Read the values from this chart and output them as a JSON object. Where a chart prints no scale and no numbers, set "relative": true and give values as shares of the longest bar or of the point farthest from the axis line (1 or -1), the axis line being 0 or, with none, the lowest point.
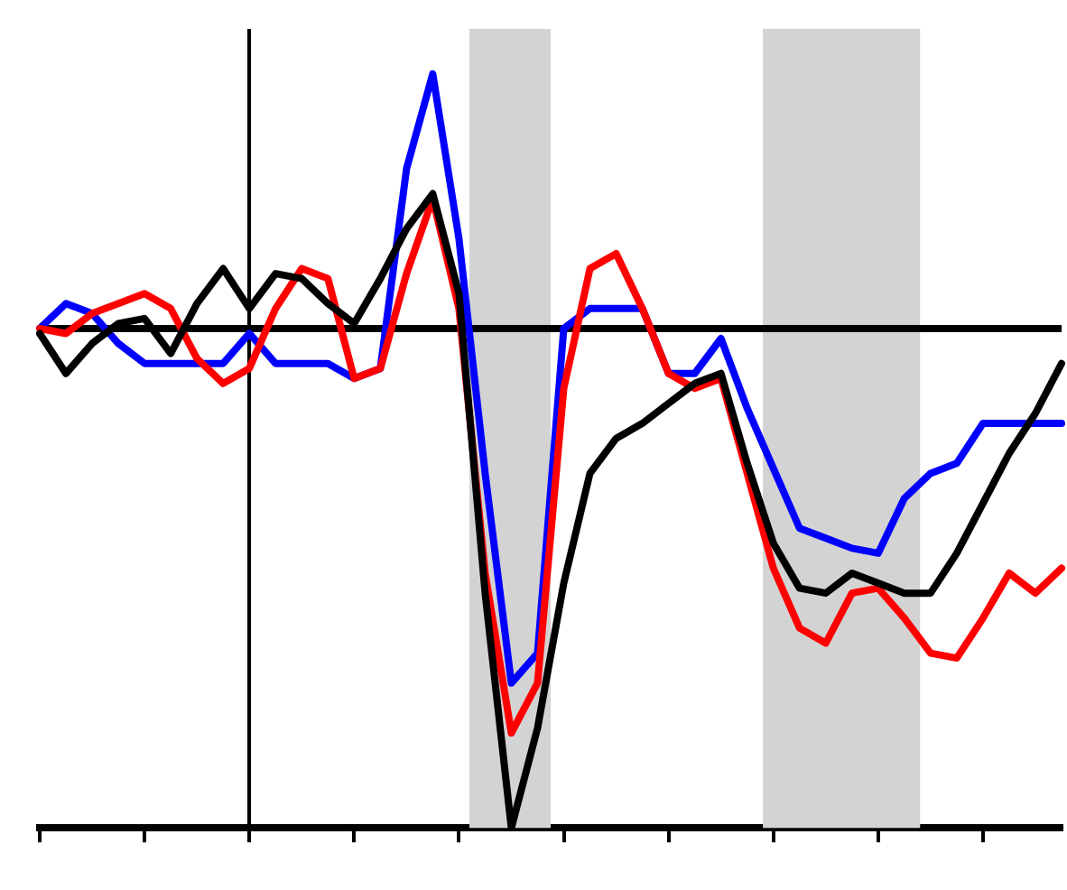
{
  "chart_data": {
    "type": "line",
    "relative": true,
    "grid": false,
    "legend": false,
    "marker": "none",
    "line_style": "solid",
    "categories": [
      null,
      null,
      null,
      null,
      null,
      null,
      null,
      null,
      null,
      null,
      null,
      null,
      null,
      null,
      null,
      null,
      null,
      null,
      null,
      null,
      null,
      null,
      null,
      null,
      null,
      null,
      null,
      null,
      null,
      null,
      null,
      null,
      null,
      null,
      null,
      null,
      null,
      null,
      null,
      null
    ],
    "series": [
      {
        "color": "#000000",
        "values": [
          -0.01,
          -0.09,
          -0.03,
          0.01,
          0.02,
          -0.05,
          0.05,
          0.12,
          0.04,
          0.11,
          0.1,
          0.05,
          0.01,
          0.1,
          0.2,
          0.27,
          0.07,
          -0.53,
          -1,
          -0.8,
          -0.51,
          -0.29,
          -0.22,
          -0.19,
          -0.15,
          -0.11,
          -0.09,
          -0.27,
          -0.43,
          -0.52,
          -0.53,
          -0.49,
          -0.51,
          -0.53,
          -0.53,
          -0.45,
          -0.35,
          -0.25,
          -0.17,
          -0.07
        ]
      },
      {
        "color": "#ff0000",
        "values": [
          0,
          -0.01,
          0.03,
          0.05,
          0.07,
          0.04,
          -0.06,
          -0.11,
          -0.08,
          0.04,
          0.12,
          0.1,
          -0.1,
          -0.08,
          0.11,
          0.26,
          0.04,
          -0.49,
          -0.81,
          -0.71,
          -0.12,
          0.12,
          0.15,
          0.04,
          -0.09,
          -0.12,
          -0.1,
          -0.29,
          -0.48,
          -0.6,
          -0.63,
          -0.53,
          -0.52,
          -0.58,
          -0.65,
          -0.66,
          -0.58,
          -0.49,
          -0.53,
          -0.48
        ]
      },
      {
        "color": "#0000ff",
        "values": [
          0,
          0.05,
          0.03,
          -0.03,
          -0.07,
          -0.07,
          -0.07,
          -0.07,
          -0.01,
          -0.07,
          -0.07,
          -0.07,
          -0.1,
          -0.08,
          0.32,
          0.51,
          0.18,
          -0.29,
          -0.71,
          -0.65,
          0,
          0.04,
          0.04,
          0.04,
          -0.09,
          -0.09,
          -0.02,
          -0.16,
          -0.28,
          -0.4,
          -0.42,
          -0.44,
          -0.45,
          -0.34,
          -0.29,
          -0.27,
          -0.19,
          -0.19,
          -0.19,
          -0.19
        ]
      }
    ]
  }
}
